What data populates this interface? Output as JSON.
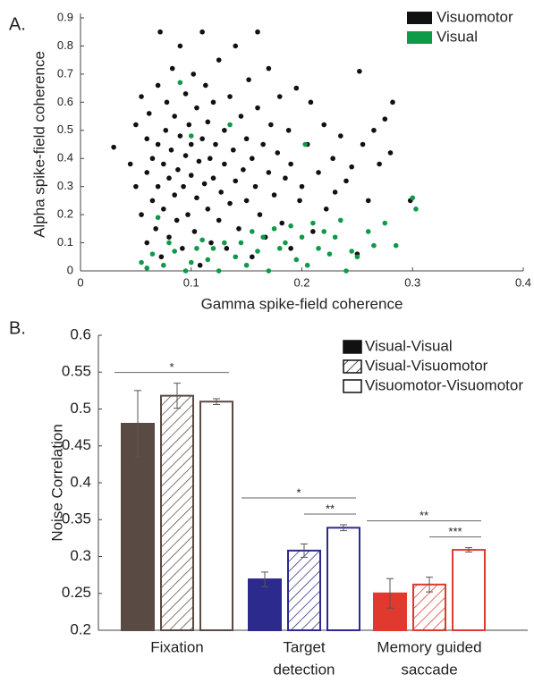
{
  "chart_data": [
    {
      "type": "scatter",
      "panel_label": "A.",
      "xlabel": "Gamma spike-field coherence",
      "ylabel": "Alpha spike-field coherence",
      "xlim": [
        0,
        0.4
      ],
      "xticks": [
        0,
        0.1,
        0.2,
        0.3,
        0.4
      ],
      "ylim": [
        0,
        0.9
      ],
      "yticks": [
        0,
        0.1,
        0.2,
        0.3,
        0.4,
        0.5,
        0.6,
        0.7,
        0.8,
        0.9
      ],
      "legend": "upper right",
      "series": [
        {
          "name": "Visuomotor",
          "color": "#111111",
          "x": [
            0.03,
            0.045,
            0.05,
            0.05,
            0.055,
            0.055,
            0.06,
            0.06,
            0.06,
            0.062,
            0.065,
            0.065,
            0.068,
            0.07,
            0.07,
            0.07,
            0.072,
            0.073,
            0.075,
            0.075,
            0.077,
            0.078,
            0.08,
            0.08,
            0.082,
            0.083,
            0.085,
            0.085,
            0.087,
            0.088,
            0.09,
            0.09,
            0.092,
            0.093,
            0.095,
            0.095,
            0.097,
            0.098,
            0.1,
            0.1,
            0.102,
            0.103,
            0.105,
            0.105,
            0.107,
            0.108,
            0.11,
            0.11,
            0.112,
            0.113,
            0.115,
            0.115,
            0.117,
            0.118,
            0.12,
            0.12,
            0.122,
            0.125,
            0.125,
            0.127,
            0.13,
            0.13,
            0.132,
            0.135,
            0.135,
            0.138,
            0.14,
            0.14,
            0.143,
            0.145,
            0.147,
            0.15,
            0.15,
            0.152,
            0.155,
            0.155,
            0.158,
            0.16,
            0.16,
            0.162,
            0.165,
            0.167,
            0.17,
            0.17,
            0.172,
            0.175,
            0.178,
            0.18,
            0.182,
            0.185,
            0.188,
            0.19,
            0.19,
            0.195,
            0.198,
            0.2,
            0.205,
            0.208,
            0.21,
            0.215,
            0.22,
            0.222,
            0.228,
            0.23,
            0.235,
            0.24,
            0.245,
            0.25,
            0.252,
            0.255,
            0.26,
            0.265,
            0.27,
            0.275,
            0.28,
            0.282,
            0.298
          ],
          "y": [
            0.44,
            0.38,
            0.3,
            0.52,
            0.2,
            0.62,
            0.1,
            0.35,
            0.47,
            0.56,
            0.25,
            0.4,
            0.15,
            0.3,
            0.45,
            0.66,
            0.85,
            0.05,
            0.22,
            0.38,
            0.5,
            0.6,
            0.12,
            0.33,
            0.43,
            0.72,
            0.27,
            0.55,
            0.18,
            0.36,
            0.48,
            0.8,
            0.08,
            0.3,
            0.41,
            0.63,
            0.2,
            0.52,
            0.34,
            0.45,
            0.7,
            0.14,
            0.26,
            0.58,
            0.39,
            0.02,
            0.47,
            0.85,
            0.31,
            0.66,
            0.22,
            0.53,
            0.4,
            0.1,
            0.6,
            0.33,
            0.45,
            0.18,
            0.75,
            0.28,
            0.5,
            0.38,
            0.08,
            0.62,
            0.24,
            0.43,
            0.8,
            0.32,
            0.15,
            0.55,
            0.36,
            0.47,
            0.25,
            0.68,
            0.05,
            0.4,
            0.3,
            0.58,
            0.85,
            0.2,
            0.45,
            0.12,
            0.35,
            0.72,
            0.52,
            0.27,
            0.42,
            0.62,
            0.17,
            0.33,
            0.5,
            0.08,
            0.38,
            0.65,
            0.25,
            0.3,
            0.45,
            0.6,
            0.14,
            0.35,
            0.52,
            0.22,
            0.4,
            0.28,
            0.48,
            0.32,
            0.37,
            0.06,
            0.71,
            0.45,
            0.25,
            0.5,
            0.38,
            0.54,
            0.42,
            0.6,
            0.25
          ]
        },
        {
          "name": "Visual",
          "color": "#0f9a48",
          "x": [
            0.055,
            0.06,
            0.065,
            0.07,
            0.075,
            0.08,
            0.085,
            0.09,
            0.095,
            0.1,
            0.1,
            0.105,
            0.11,
            0.115,
            0.12,
            0.125,
            0.13,
            0.135,
            0.14,
            0.145,
            0.15,
            0.155,
            0.16,
            0.165,
            0.17,
            0.175,
            0.18,
            0.185,
            0.19,
            0.195,
            0.2,
            0.203,
            0.205,
            0.21,
            0.215,
            0.22,
            0.225,
            0.23,
            0.235,
            0.24,
            0.245,
            0.25,
            0.26,
            0.265,
            0.275,
            0.285,
            0.3,
            0.303
          ],
          "y": [
            0.03,
            0.01,
            0.06,
            0.19,
            0.02,
            0.1,
            0.07,
            0.67,
            0.0,
            0.03,
            0.48,
            0.08,
            0.11,
            0.04,
            0.08,
            0.0,
            0.1,
            0.52,
            0.05,
            0.1,
            0.02,
            0.14,
            0.07,
            0.12,
            0.0,
            0.15,
            0.08,
            0.1,
            0.16,
            0.04,
            0.12,
            0.45,
            0.02,
            0.17,
            0.08,
            0.14,
            0.06,
            0.12,
            0.18,
            0.0,
            0.07,
            0.05,
            0.14,
            0.09,
            0.17,
            0.09,
            0.26,
            0.22
          ]
        }
      ]
    },
    {
      "type": "bar",
      "panel_label": "B.",
      "ylabel": "Noise Correlation",
      "categories": [
        [
          "Fixation"
        ],
        [
          "Target",
          "detection"
        ],
        [
          "Memory guided",
          "saccade"
        ]
      ],
      "category_colors": [
        "#5a4a44",
        "#2d2a8e",
        "#e03a2e"
      ],
      "ylim": [
        0.2,
        0.6
      ],
      "yticks": [
        0.2,
        0.25,
        0.3,
        0.35,
        0.4,
        0.45,
        0.5,
        0.55,
        0.6
      ],
      "legend": "upper right",
      "series": [
        {
          "name": "Visual-Visual",
          "color": "#111111",
          "pattern": "solid",
          "values": [
            0.48,
            0.269,
            0.25
          ],
          "errors": [
            0.045,
            0.01,
            0.02
          ]
        },
        {
          "name": "Visual-Visuomotor",
          "color": "#111111",
          "pattern": "hatch",
          "values": [
            0.518,
            0.308,
            0.262
          ],
          "errors": [
            0.017,
            0.009,
            0.01
          ]
        },
        {
          "name": "Visuomotor-Visuomotor",
          "color": "#111111",
          "pattern": "outline",
          "values": [
            0.51,
            0.339,
            0.309
          ],
          "errors": [
            0.004,
            0.004,
            0.003
          ]
        }
      ],
      "significance": [
        [
          "*"
        ],
        [
          "*",
          "**"
        ],
        [
          "**",
          "***"
        ]
      ]
    }
  ]
}
